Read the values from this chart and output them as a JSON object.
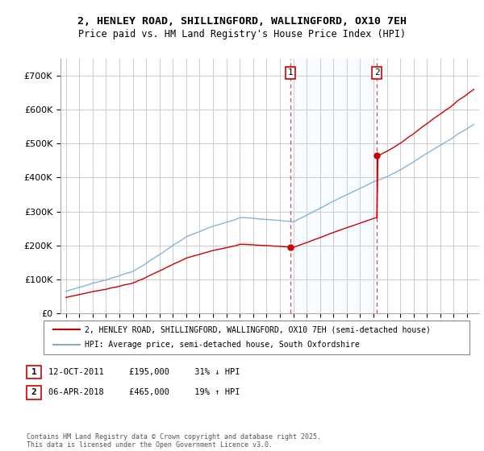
{
  "title_line1": "2, HENLEY ROAD, SHILLINGFORD, WALLINGFORD, OX10 7EH",
  "title_line2": "Price paid vs. HM Land Registry's House Price Index (HPI)",
  "ylim": [
    0,
    750000
  ],
  "yticks": [
    0,
    100000,
    200000,
    300000,
    400000,
    500000,
    600000,
    700000
  ],
  "ytick_labels": [
    "£0",
    "£100K",
    "£200K",
    "£300K",
    "£400K",
    "£500K",
    "£600K",
    "£700K"
  ],
  "sale1_date_num": 2011.78,
  "sale1_price": 195000,
  "sale2_date_num": 2018.26,
  "sale2_price": 465000,
  "legend_red_label": "2, HENLEY ROAD, SHILLINGFORD, WALLINGFORD, OX10 7EH (semi-detached house)",
  "legend_blue_label": "HPI: Average price, semi-detached house, South Oxfordshire",
  "annotation1_text": "12-OCT-2011     £195,000     31% ↓ HPI",
  "annotation2_text": "06-APR-2018     £465,000     19% ↑ HPI",
  "footer_text": "Contains HM Land Registry data © Crown copyright and database right 2025.\nThis data is licensed under the Open Government Licence v3.0.",
  "red_color": "#cc0000",
  "blue_color": "#7aadd4",
  "shade_color": "#ddeeff",
  "vline_color": "#dd4444",
  "box_color": "#cc0000",
  "grid_color": "#cccccc",
  "background_color": "#ffffff"
}
